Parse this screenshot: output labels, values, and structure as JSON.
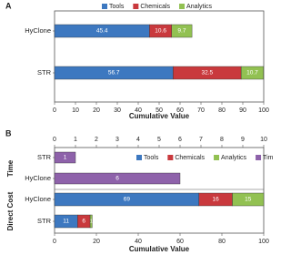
{
  "chart_data": [
    {
      "type": "bar",
      "panel": "A",
      "orientation": "horizontal",
      "stacked": true,
      "categories": [
        "HyClone",
        "STR"
      ],
      "series": [
        {
          "name": "Tools",
          "color": "#3d78c0",
          "values": [
            45.4,
            56.7
          ]
        },
        {
          "name": "Chemicals",
          "color": "#c9393d",
          "values": [
            10.6,
            32.5
          ]
        },
        {
          "name": "Analytics",
          "color": "#92c152",
          "values": [
            9.7,
            10.7
          ]
        }
      ],
      "xlim": [
        0,
        100
      ],
      "xticks": [
        0,
        10,
        20,
        30,
        40,
        50,
        60,
        70,
        80,
        90,
        100
      ],
      "xlabel": "Cumulative Value",
      "legend": "top"
    },
    {
      "type": "bar",
      "panel": "B",
      "orientation": "horizontal",
      "stacked": true,
      "groups": [
        {
          "name": "Time",
          "categories": [
            "STR",
            "HyClone"
          ],
          "series": [
            {
              "name": "Time",
              "color": "#8e62aa",
              "values": [
                1,
                6
              ]
            }
          ],
          "xlim": [
            0,
            10
          ],
          "xticks": [
            0,
            1,
            2,
            3,
            4,
            5,
            6,
            7,
            8,
            9,
            10
          ]
        },
        {
          "name": "Direct Cost",
          "categories": [
            "HyClone",
            "STR"
          ],
          "series": [
            {
              "name": "Tools",
              "color": "#3d78c0",
              "values": [
                69,
                11
              ]
            },
            {
              "name": "Chemicals",
              "color": "#c9393d",
              "values": [
                16,
                6
              ]
            },
            {
              "name": "Analytics",
              "color": "#92c152",
              "values": [
                15,
                1
              ]
            }
          ],
          "xlim": [
            0,
            100
          ],
          "xticks": [
            0,
            20,
            40,
            60,
            80,
            100
          ]
        }
      ],
      "xlabel": "Cumulative Value",
      "legend": "top-right"
    }
  ]
}
